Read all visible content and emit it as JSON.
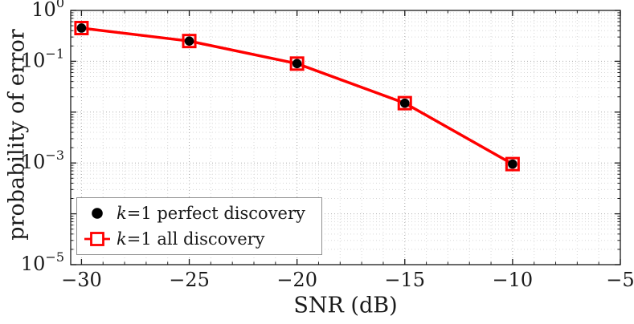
{
  "chart_data": {
    "type": "line",
    "title": "",
    "xlabel": "SNR (dB)",
    "ylabel": "probability of error",
    "x": [
      -30,
      -25,
      -20,
      -15,
      -10
    ],
    "series": [
      {
        "name": "k=1 perfect discovery",
        "marker": "filled-circle",
        "color": "#000000",
        "values": [
          0.45,
          0.25,
          0.09,
          0.015,
          0.00095
        ]
      },
      {
        "name": "k=1 all discovery",
        "marker": "open-square-with-line",
        "color": "#ff0000",
        "values": [
          0.45,
          0.25,
          0.09,
          0.015,
          0.00095
        ]
      }
    ],
    "line_color": "#ff0000",
    "xlim": [
      -30.5,
      -5
    ],
    "ylim_exp": [
      -5,
      0
    ],
    "x_ticks": [
      -30,
      -25,
      -20,
      -15,
      -10,
      -5
    ],
    "y_tick_exponents": [
      0,
      -1,
      -3,
      -5
    ],
    "yscale": "log",
    "grid": "major and minor dotted",
    "legend_position": "lower-left"
  },
  "legend": {
    "items": [
      {
        "k": "k",
        "rest": "=1 perfect discovery"
      },
      {
        "k": "k",
        "rest": "=1 all discovery"
      }
    ]
  }
}
